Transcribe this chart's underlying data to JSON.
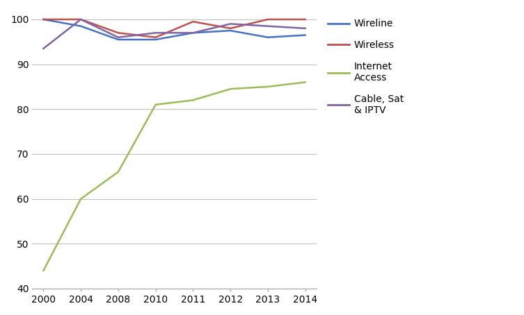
{
  "years": [
    "2000",
    "2004",
    "2008",
    "2010",
    "2011",
    "2012",
    "2013",
    "2014"
  ],
  "wireline": [
    100,
    98.5,
    95.5,
    95.5,
    97,
    97.5,
    96,
    96.5
  ],
  "wireless": [
    100,
    100,
    97,
    96,
    99.5,
    98,
    100,
    100
  ],
  "internet_access": [
    44,
    60,
    66,
    81,
    82,
    84.5,
    85,
    86
  ],
  "cable_sat_iptv": [
    93.5,
    100,
    96,
    97,
    97,
    99,
    98.5,
    98
  ],
  "wireline_color": "#4472C4",
  "wireless_color": "#C0504D",
  "internet_access_color": "#9BBB59",
  "cable_sat_iptv_color": "#8064A2",
  "ylim": [
    40,
    102
  ],
  "yticks": [
    40,
    50,
    60,
    70,
    80,
    90,
    100
  ],
  "background_color": "#FFFFFF",
  "grid_color": "#C0C0C0",
  "legend_labels": [
    "Wireline",
    "Wireless",
    "Internet\nAccess",
    "Cable, Sat\n& IPTV"
  ]
}
